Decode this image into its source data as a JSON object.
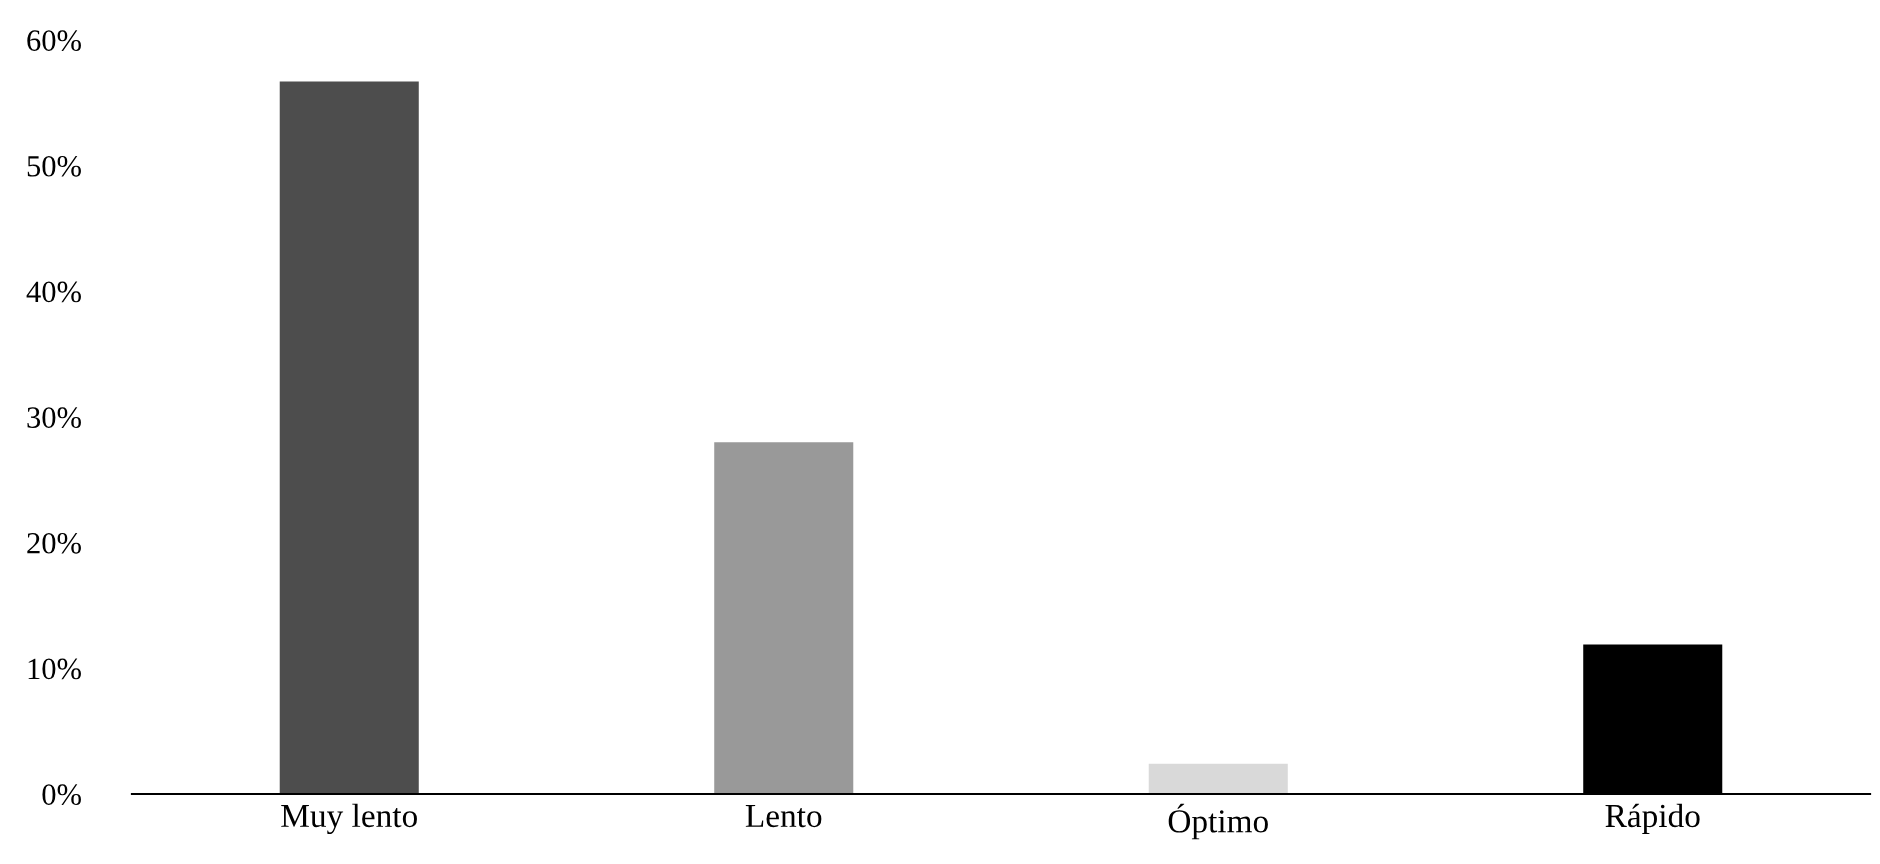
{
  "chart_data": {
    "type": "bar",
    "categories": [
      "Muy lento",
      "Lento",
      "Óptimo",
      "Rápido"
    ],
    "values": [
      56.7,
      28.0,
      2.4,
      11.9
    ],
    "colors": [
      "#4d4d4d",
      "#999999",
      "#d9d9d9",
      "#000000"
    ],
    "ylim": [
      0,
      60
    ],
    "yticks": [
      {
        "value": 0,
        "label": "0%"
      },
      {
        "value": 10,
        "label": "10%"
      },
      {
        "value": 20,
        "label": "20%"
      },
      {
        "value": 30,
        "label": "30%"
      },
      {
        "value": 40,
        "label": "40%"
      },
      {
        "value": 50,
        "label": "50%"
      },
      {
        "value": 60,
        "label": "60%"
      }
    ],
    "grid": false,
    "legend": false
  }
}
